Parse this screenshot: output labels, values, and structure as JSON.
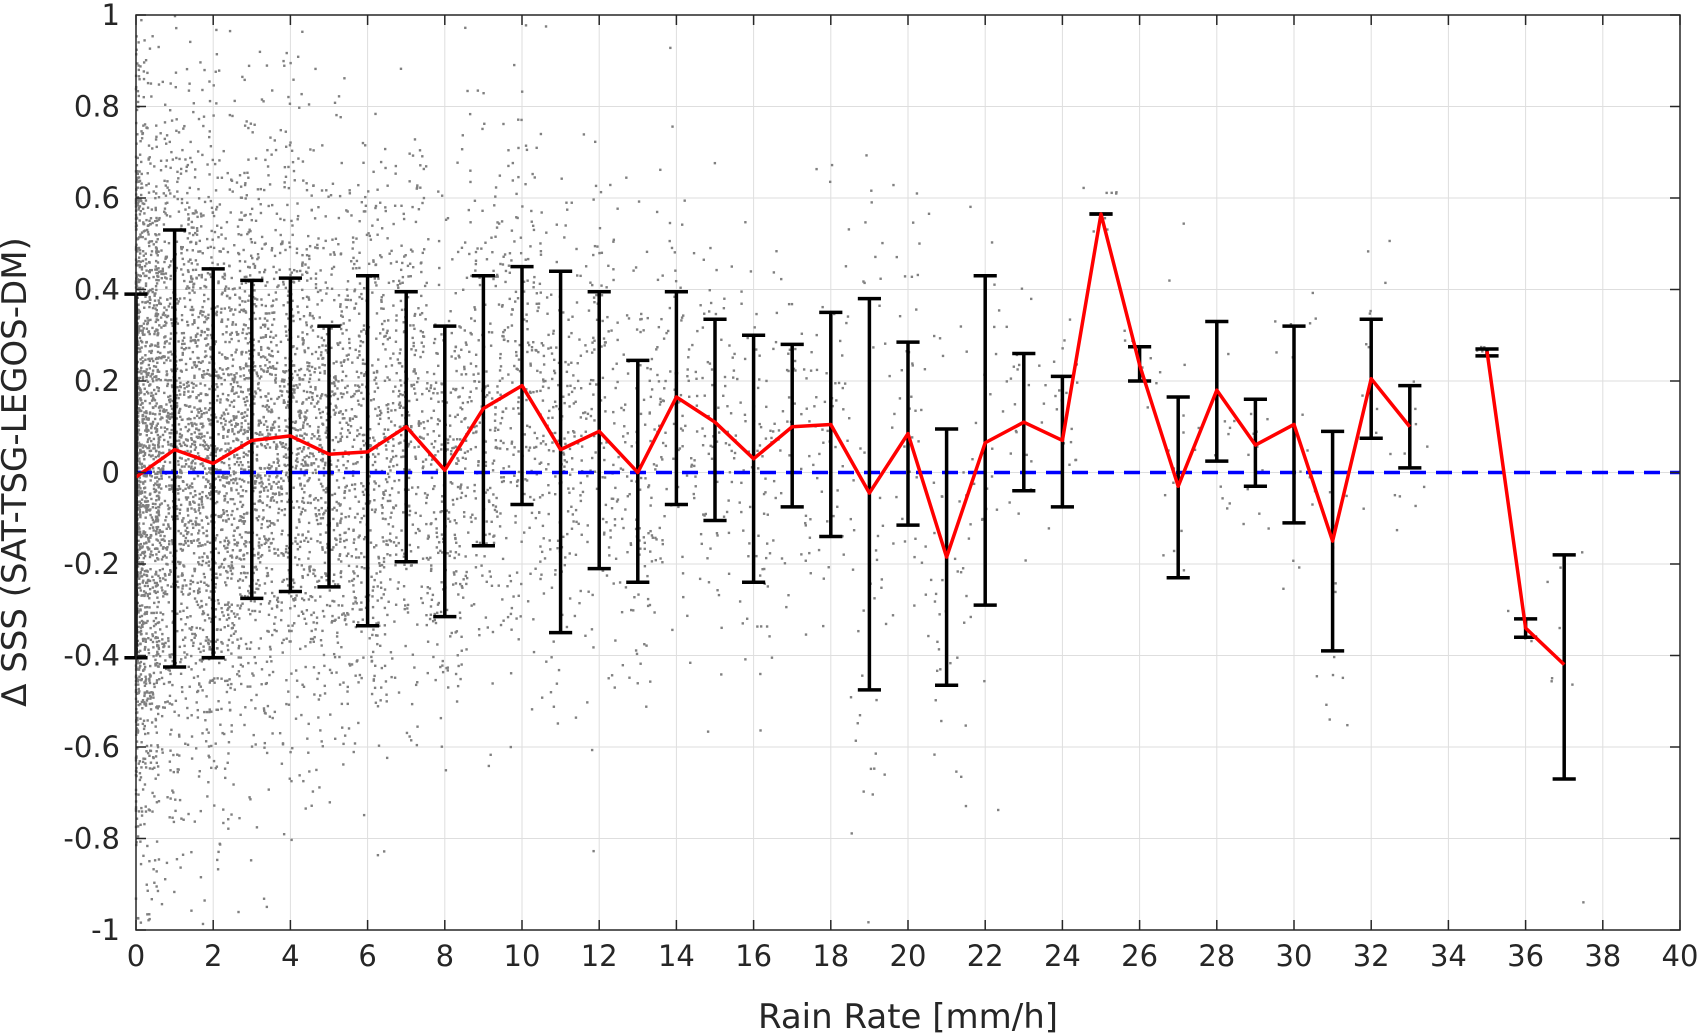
{
  "chart_data": {
    "type": "scatter",
    "xlabel": "Rain Rate [mm/h]",
    "ylabel": "Δ SSS (SAT-TSG-LEGOS-DM)",
    "xlim": [
      0,
      40
    ],
    "ylim": [
      -1,
      1
    ],
    "x_ticks": [
      0,
      2,
      4,
      6,
      8,
      10,
      12,
      14,
      16,
      18,
      20,
      22,
      24,
      26,
      28,
      30,
      32,
      34,
      36,
      38,
      40
    ],
    "y_ticks": [
      -1,
      -0.8,
      -0.6,
      -0.4,
      -0.2,
      0,
      0.2,
      0.4,
      0.6,
      0.8,
      1
    ],
    "x_tick_labels": [
      "0",
      "2",
      "4",
      "6",
      "8",
      "10",
      "12",
      "14",
      "16",
      "18",
      "20",
      "22",
      "24",
      "26",
      "28",
      "30",
      "32",
      "34",
      "36",
      "38",
      "40"
    ],
    "y_tick_labels": [
      "-1",
      "-0.8",
      "-0.6",
      "-0.4",
      "-0.2",
      "0",
      "0.2",
      "0.4",
      "0.6",
      "0.8",
      "1"
    ],
    "grid": true,
    "zero_line": {
      "y": 0,
      "style": "dashed",
      "color": "#0000ff"
    },
    "colors": {
      "scatter": "#808080",
      "mean_line": "#ff0000",
      "error_bars": "#000000",
      "zero_line": "#0000ff",
      "grid": "#dedede"
    },
    "scatter_density": [
      {
        "x": 0,
        "n": 1400,
        "std": 0.4
      },
      {
        "x": 1,
        "n": 950,
        "std": 0.38
      },
      {
        "x": 2,
        "n": 850,
        "std": 0.36
      },
      {
        "x": 3,
        "n": 700,
        "std": 0.33
      },
      {
        "x": 4,
        "n": 600,
        "std": 0.32
      },
      {
        "x": 5,
        "n": 480,
        "std": 0.3
      },
      {
        "x": 6,
        "n": 400,
        "std": 0.3
      },
      {
        "x": 7,
        "n": 320,
        "std": 0.28
      },
      {
        "x": 8,
        "n": 260,
        "std": 0.28
      },
      {
        "x": 9,
        "n": 230,
        "std": 0.28
      },
      {
        "x": 10,
        "n": 200,
        "std": 0.28
      },
      {
        "x": 11,
        "n": 170,
        "std": 0.28
      },
      {
        "x": 12,
        "n": 140,
        "std": 0.27
      },
      {
        "x": 13,
        "n": 115,
        "std": 0.25
      },
      {
        "x": 14,
        "n": 95,
        "std": 0.24
      },
      {
        "x": 15,
        "n": 80,
        "std": 0.23
      },
      {
        "x": 16,
        "n": 70,
        "std": 0.25
      },
      {
        "x": 17,
        "n": 55,
        "std": 0.2
      },
      {
        "x": 18,
        "n": 50,
        "std": 0.24
      },
      {
        "x": 19,
        "n": 45,
        "std": 0.4
      },
      {
        "x": 20,
        "n": 40,
        "std": 0.2
      },
      {
        "x": 21,
        "n": 35,
        "std": 0.28
      },
      {
        "x": 22,
        "n": 30,
        "std": 0.35
      },
      {
        "x": 23,
        "n": 22,
        "std": 0.15
      },
      {
        "x": 24,
        "n": 20,
        "std": 0.14
      },
      {
        "x": 25,
        "n": 8,
        "std": 0.05
      },
      {
        "x": 26,
        "n": 10,
        "std": 0.05
      },
      {
        "x": 27,
        "n": 15,
        "std": 0.2
      },
      {
        "x": 28,
        "n": 12,
        "std": 0.15
      },
      {
        "x": 29,
        "n": 12,
        "std": 0.1
      },
      {
        "x": 30,
        "n": 15,
        "std": 0.2
      },
      {
        "x": 31,
        "n": 15,
        "std": 0.25
      },
      {
        "x": 32,
        "n": 12,
        "std": 0.13
      },
      {
        "x": 33,
        "n": 10,
        "std": 0.09
      },
      {
        "x": 35,
        "n": 4,
        "std": 0.01
      },
      {
        "x": 36,
        "n": 4,
        "std": 0.02
      },
      {
        "x": 37,
        "n": 8,
        "std": 0.25
      }
    ],
    "series": [
      {
        "type": "line",
        "x": [
          0,
          1,
          2,
          3,
          4,
          5,
          6,
          7,
          8,
          9,
          10,
          11,
          12,
          13,
          14,
          15,
          16,
          17,
          18,
          19,
          20,
          21,
          22,
          23,
          24,
          25,
          26,
          27,
          28,
          29,
          30,
          31,
          32,
          33
        ],
        "values": [
          -0.01,
          0.05,
          0.02,
          0.07,
          0.08,
          0.04,
          0.045,
          0.1,
          0.005,
          0.14,
          0.19,
          0.05,
          0.09,
          0.0,
          0.165,
          0.11,
          0.03,
          0.1,
          0.105,
          -0.045,
          0.085,
          -0.185,
          0.065,
          0.11,
          0.07,
          0.565,
          0.235,
          -0.03,
          0.18,
          0.06,
          0.105,
          -0.15,
          0.205,
          0.1
        ]
      },
      {
        "type": "line",
        "x": [
          35,
          36,
          37
        ],
        "values": [
          0.265,
          -0.34,
          -0.42
        ]
      },
      {
        "type": "errorbar",
        "x": [
          0,
          1,
          2,
          3,
          4,
          5,
          6,
          7,
          8,
          9,
          10,
          11,
          12,
          13,
          14,
          15,
          16,
          17,
          18,
          19,
          20,
          21,
          22,
          23,
          24,
          25,
          26,
          27,
          28,
          29,
          30,
          31,
          32,
          33,
          35,
          36,
          37
        ],
        "upper": [
          0.39,
          0.53,
          0.445,
          0.42,
          0.425,
          0.32,
          0.43,
          0.395,
          0.32,
          0.43,
          0.45,
          0.44,
          0.395,
          0.245,
          0.395,
          0.335,
          0.3,
          0.28,
          0.35,
          0.38,
          0.285,
          0.095,
          0.43,
          0.26,
          0.21,
          0.565,
          0.275,
          0.165,
          0.33,
          0.16,
          0.32,
          0.09,
          0.335,
          0.19,
          0.27,
          -0.32,
          -0.18
        ],
        "lower": [
          -0.405,
          -0.425,
          -0.405,
          -0.275,
          -0.26,
          -0.25,
          -0.335,
          -0.195,
          -0.315,
          -0.16,
          -0.07,
          -0.35,
          -0.21,
          -0.24,
          -0.07,
          -0.105,
          -0.24,
          -0.075,
          -0.14,
          -0.475,
          -0.115,
          -0.465,
          -0.29,
          -0.04,
          -0.075,
          0.565,
          0.2,
          -0.23,
          0.025,
          -0.03,
          -0.11,
          -0.39,
          0.075,
          0.01,
          0.255,
          -0.36,
          -0.67
        ]
      }
    ]
  }
}
